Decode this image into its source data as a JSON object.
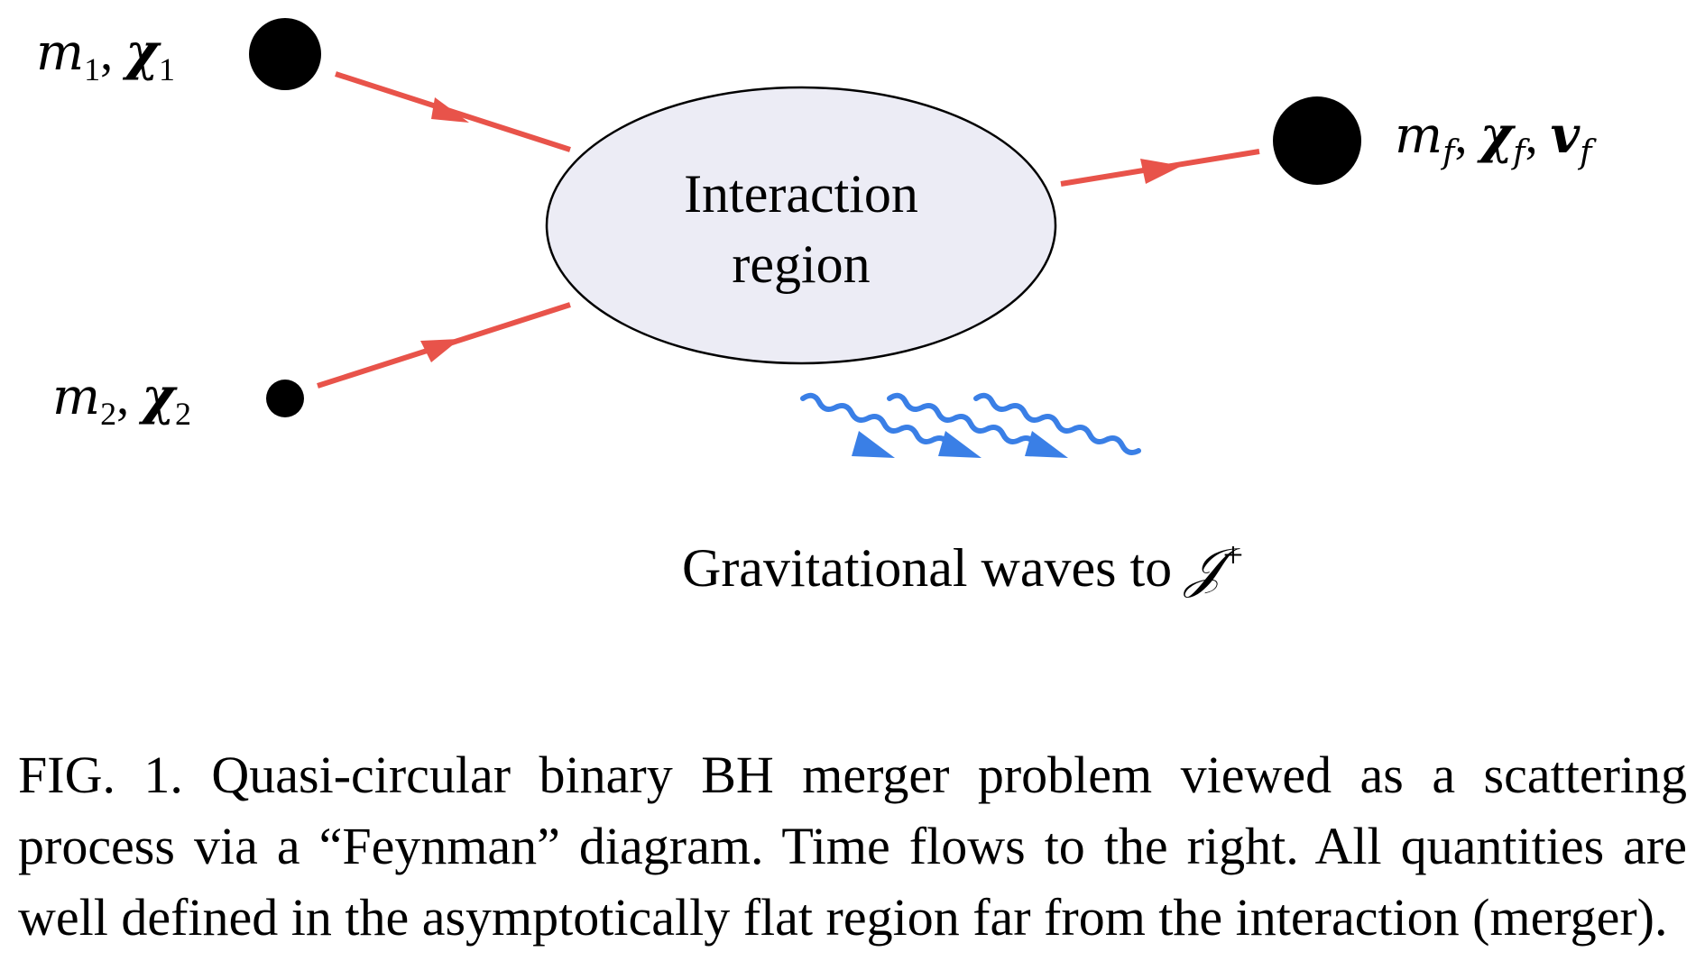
{
  "labels": {
    "incoming_1": {
      "mass": "m",
      "mass_sub": "1",
      "spin": "χ",
      "spin_sub": "1"
    },
    "incoming_2": {
      "mass": "m",
      "mass_sub": "2",
      "spin": "χ",
      "spin_sub": "2"
    },
    "outgoing": {
      "mass": "m",
      "mass_sub": "f",
      "spin": "χ",
      "spin_sub": "f",
      "velocity": "v",
      "velocity_sub": "f"
    },
    "region_line_1": "Interaction",
    "region_line_2": "region",
    "gw_text": "Gravitational waves to ",
    "gw_scri": "𝒥",
    "gw_sup": "+"
  },
  "caption": {
    "text": "FIG. 1. Quasi-circular binary BH merger problem viewed as a scattering process via a “Feynman” diagram. Time flows to the right. All quantities are well defined in the asymptotically flat region far from the interaction (merger)."
  },
  "colors": {
    "particle_lines": "#e8534a",
    "gravitational_waves": "#3a7fe6",
    "region_fill": "#ececf5",
    "black_holes": "#000000"
  }
}
